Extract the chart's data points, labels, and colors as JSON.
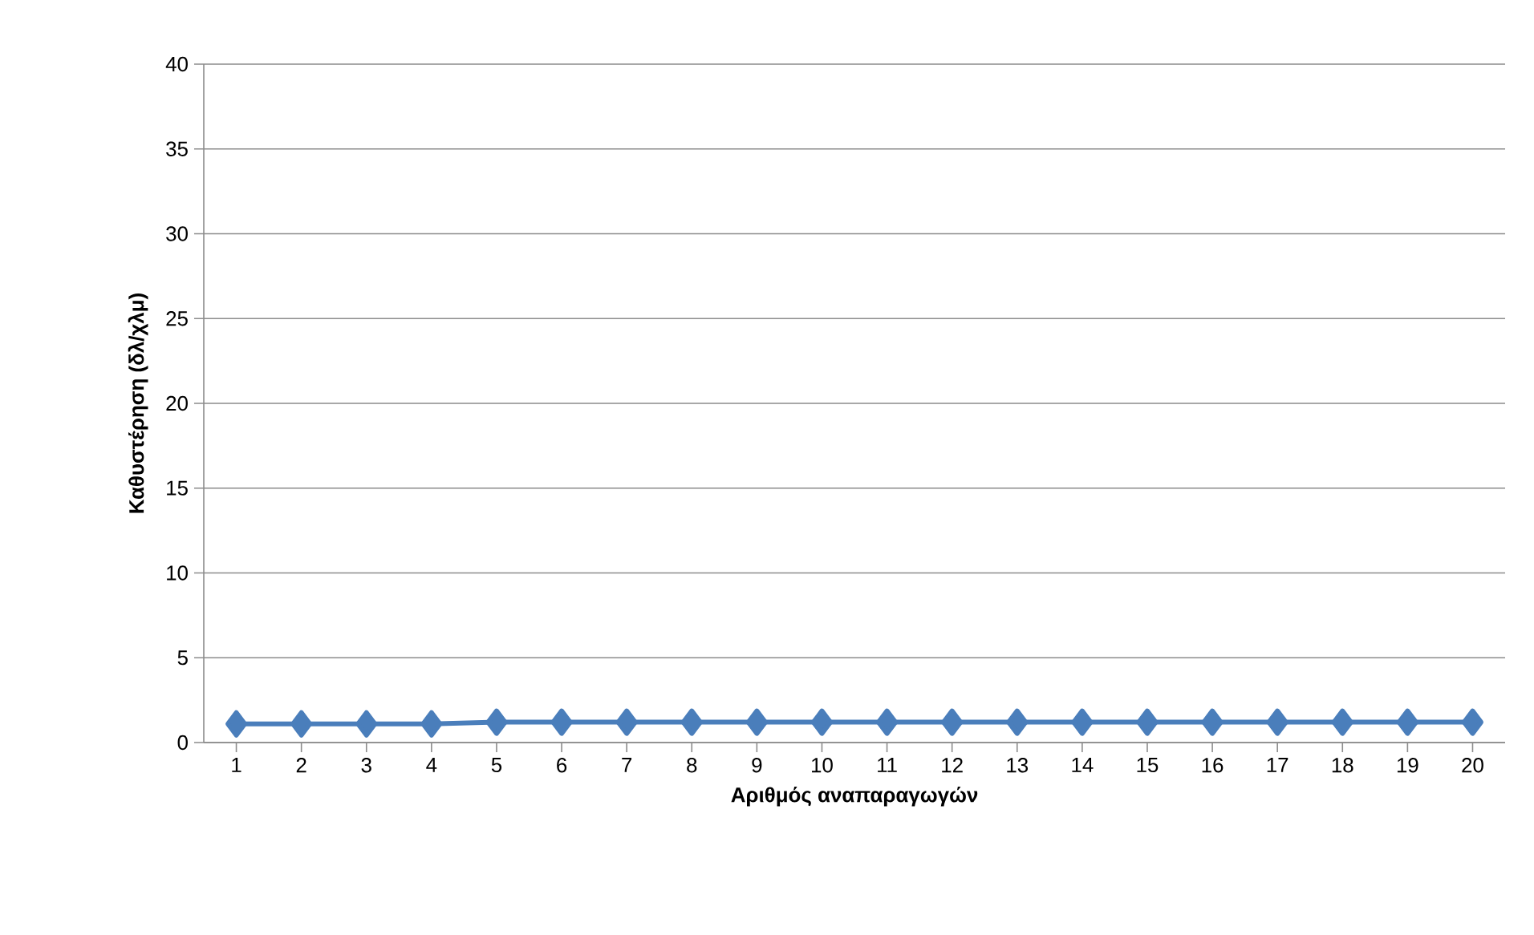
{
  "chart_data": {
    "type": "line",
    "xlabel": "Αριθμός αναπαραγωγών",
    "ylabel": "Καθυστέρηση (δλ/χλμ)",
    "categories": [
      "1",
      "2",
      "3",
      "4",
      "5",
      "6",
      "7",
      "8",
      "9",
      "10",
      "11",
      "12",
      "13",
      "14",
      "15",
      "16",
      "17",
      "18",
      "19",
      "20"
    ],
    "series": [
      {
        "color": "#4a7ebb",
        "values": [
          1.1,
          1.1,
          1.1,
          1.1,
          1.2,
          1.2,
          1.2,
          1.2,
          1.2,
          1.2,
          1.2,
          1.2,
          1.2,
          1.2,
          1.2,
          1.2,
          1.2,
          1.2,
          1.2,
          1.2
        ]
      }
    ],
    "ylim": [
      0,
      40
    ],
    "yticks": [
      0,
      5,
      10,
      15,
      20,
      25,
      30,
      35,
      40
    ],
    "grid": "y",
    "marker": "diamond",
    "line_style": "solid"
  }
}
